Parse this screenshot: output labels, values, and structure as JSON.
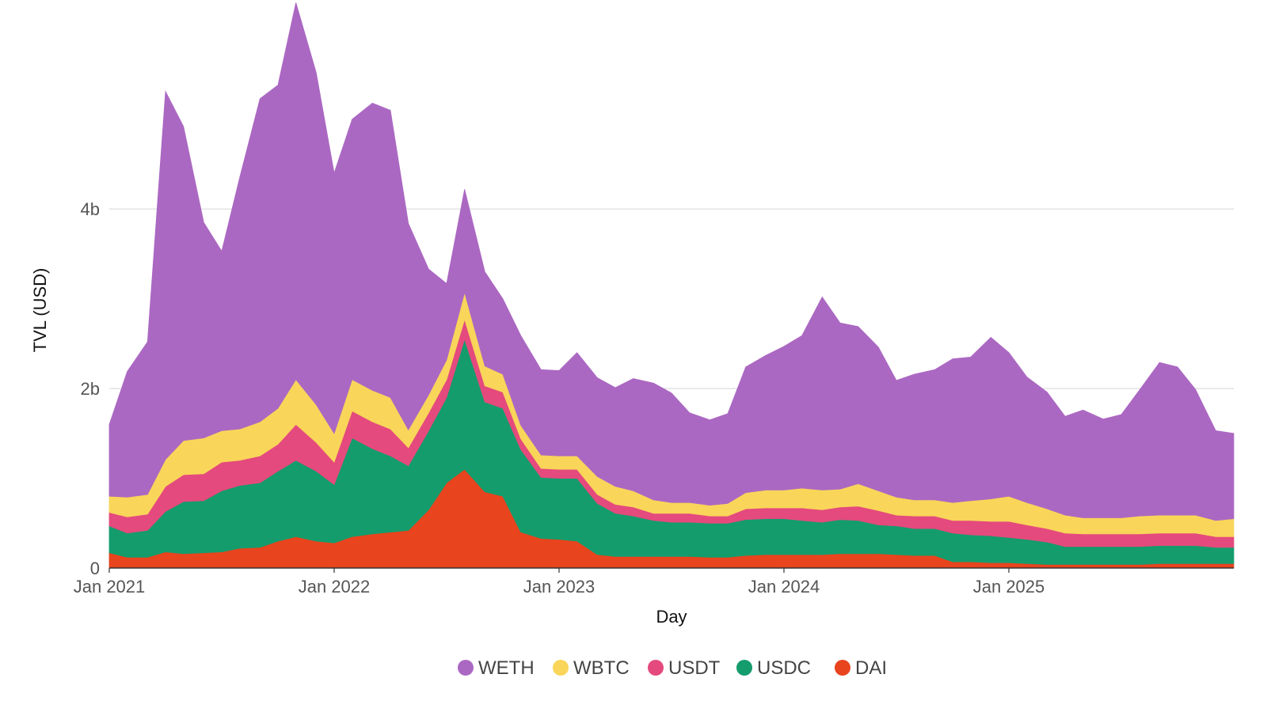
{
  "chart_data": {
    "type": "area",
    "stacked": true,
    "xlabel": "Day",
    "ylabel": "TVL (USD)",
    "x_ticks": [
      "Jan 2021",
      "Jan 2022",
      "Jan 2023",
      "Jan 2024",
      "Jan 2025"
    ],
    "y_ticks": [
      {
        "value": 0,
        "label": "0"
      },
      {
        "value": 2000000000,
        "label": "2b"
      },
      {
        "value": 4000000000,
        "label": "4b"
      }
    ],
    "ylim": [
      0,
      5800000000
    ],
    "grid": true,
    "legend_position": "bottom-center",
    "x_unit": "year (decimal)",
    "x": [
      2021.0,
      2021.08,
      2021.17,
      2021.25,
      2021.33,
      2021.42,
      2021.5,
      2021.58,
      2021.67,
      2021.75,
      2021.83,
      2021.92,
      2022.0,
      2022.08,
      2022.17,
      2022.25,
      2022.33,
      2022.42,
      2022.5,
      2022.58,
      2022.67,
      2022.75,
      2022.83,
      2022.92,
      2023.0,
      2023.08,
      2023.17,
      2023.25,
      2023.33,
      2023.42,
      2023.5,
      2023.58,
      2023.67,
      2023.75,
      2023.83,
      2023.92,
      2024.0,
      2024.08,
      2024.17,
      2024.25,
      2024.33,
      2024.42,
      2024.5,
      2024.58,
      2024.67,
      2024.75,
      2024.83,
      2024.92,
      2025.0,
      2025.08,
      2025.17,
      2025.25,
      2025.33,
      2025.42,
      2025.5,
      2025.58,
      2025.67,
      2025.75,
      2025.83,
      2025.92,
      2026.0
    ],
    "series": [
      {
        "name": "DAI",
        "color": "#e8441e",
        "values": [
          0.17,
          0.12,
          0.12,
          0.18,
          0.16,
          0.17,
          0.18,
          0.22,
          0.23,
          0.3,
          0.35,
          0.3,
          0.28,
          0.35,
          0.38,
          0.4,
          0.42,
          0.65,
          0.95,
          1.1,
          0.85,
          0.8,
          0.4,
          0.33,
          0.32,
          0.3,
          0.15,
          0.13,
          0.13,
          0.13,
          0.13,
          0.13,
          0.12,
          0.12,
          0.14,
          0.15,
          0.15,
          0.15,
          0.15,
          0.16,
          0.16,
          0.16,
          0.15,
          0.14,
          0.14,
          0.07,
          0.07,
          0.06,
          0.06,
          0.05,
          0.04,
          0.04,
          0.04,
          0.04,
          0.04,
          0.04,
          0.05,
          0.05,
          0.05,
          0.05,
          0.05
        ]
      },
      {
        "name": "USDC",
        "color": "#149c6c",
        "values": [
          0.3,
          0.27,
          0.3,
          0.45,
          0.58,
          0.58,
          0.68,
          0.7,
          0.72,
          0.78,
          0.85,
          0.78,
          0.65,
          1.1,
          0.95,
          0.85,
          0.72,
          0.88,
          0.95,
          1.45,
          1.0,
          0.98,
          0.92,
          0.68,
          0.68,
          0.7,
          0.57,
          0.48,
          0.45,
          0.4,
          0.38,
          0.38,
          0.38,
          0.38,
          0.4,
          0.4,
          0.4,
          0.38,
          0.36,
          0.38,
          0.37,
          0.32,
          0.32,
          0.3,
          0.3,
          0.32,
          0.3,
          0.3,
          0.28,
          0.27,
          0.25,
          0.2,
          0.2,
          0.2,
          0.2,
          0.2,
          0.2,
          0.2,
          0.2,
          0.18,
          0.18
        ]
      },
      {
        "name": "USDT",
        "color": "#e44a7d",
        "values": [
          0.15,
          0.18,
          0.18,
          0.28,
          0.3,
          0.3,
          0.32,
          0.28,
          0.3,
          0.3,
          0.4,
          0.32,
          0.25,
          0.3,
          0.3,
          0.3,
          0.2,
          0.2,
          0.2,
          0.22,
          0.18,
          0.18,
          0.12,
          0.1,
          0.1,
          0.1,
          0.1,
          0.1,
          0.1,
          0.08,
          0.1,
          0.1,
          0.08,
          0.08,
          0.12,
          0.12,
          0.12,
          0.14,
          0.14,
          0.14,
          0.16,
          0.16,
          0.12,
          0.14,
          0.14,
          0.14,
          0.16,
          0.16,
          0.18,
          0.16,
          0.15,
          0.15,
          0.14,
          0.14,
          0.14,
          0.14,
          0.14,
          0.14,
          0.14,
          0.12,
          0.12
        ]
      },
      {
        "name": "WBTC",
        "color": "#f9d55a",
        "values": [
          0.18,
          0.22,
          0.22,
          0.3,
          0.38,
          0.4,
          0.35,
          0.35,
          0.38,
          0.4,
          0.5,
          0.42,
          0.32,
          0.35,
          0.35,
          0.35,
          0.2,
          0.2,
          0.22,
          0.3,
          0.22,
          0.2,
          0.15,
          0.15,
          0.15,
          0.15,
          0.2,
          0.2,
          0.18,
          0.15,
          0.12,
          0.12,
          0.12,
          0.14,
          0.18,
          0.2,
          0.2,
          0.22,
          0.22,
          0.2,
          0.25,
          0.22,
          0.2,
          0.18,
          0.18,
          0.2,
          0.22,
          0.25,
          0.28,
          0.25,
          0.22,
          0.2,
          0.18,
          0.18,
          0.18,
          0.2,
          0.2,
          0.2,
          0.2,
          0.18,
          0.2
        ]
      },
      {
        "name": "WETH",
        "color": "#ab68c2",
        "values": [
          0.8,
          1.4,
          1.7,
          4.1,
          3.5,
          2.4,
          2.0,
          2.8,
          3.6,
          3.6,
          4.2,
          3.7,
          2.9,
          2.9,
          3.2,
          3.2,
          2.3,
          1.4,
          0.85,
          1.15,
          1.05,
          0.84,
          1.0,
          0.95,
          0.95,
          1.15,
          1.1,
          1.1,
          1.25,
          1.3,
          1.22,
          1.0,
          0.95,
          1.0,
          1.4,
          1.5,
          1.6,
          1.7,
          2.15,
          1.85,
          1.75,
          1.6,
          1.3,
          1.4,
          1.45,
          1.6,
          1.6,
          1.8,
          1.6,
          1.4,
          1.3,
          1.1,
          1.2,
          1.1,
          1.15,
          1.4,
          1.7,
          1.65,
          1.4,
          1.0,
          0.95
        ]
      }
    ],
    "value_unit": "billion USD"
  }
}
